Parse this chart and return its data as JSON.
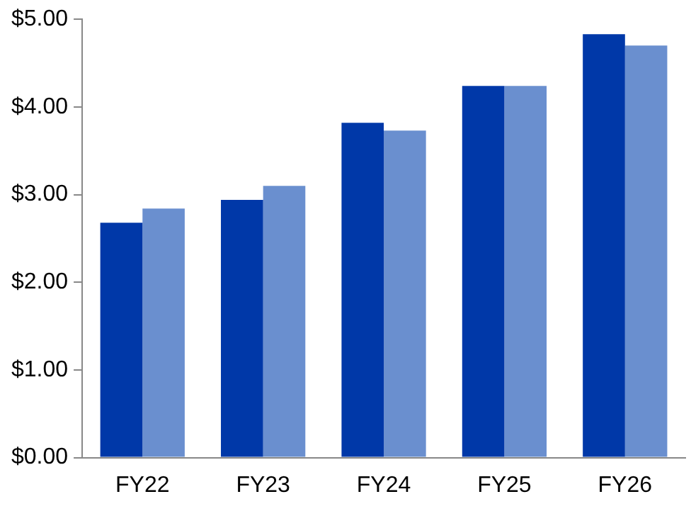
{
  "chart_data": {
    "type": "bar",
    "categories": [
      "FY22",
      "FY23",
      "FY24",
      "FY25",
      "FY26"
    ],
    "series": [
      {
        "color": "#0038a8",
        "values": [
          2.68,
          2.94,
          3.82,
          4.24,
          4.83
        ]
      },
      {
        "color": "#6a8fcf",
        "values": [
          2.84,
          3.1,
          3.73,
          4.24,
          4.7
        ]
      }
    ],
    "ylim": [
      0,
      5
    ],
    "yticks": [
      {
        "value": 0,
        "label": "$0.00"
      },
      {
        "value": 1,
        "label": "$1.00"
      },
      {
        "value": 2,
        "label": "$2.00"
      },
      {
        "value": 3,
        "label": "$3.00"
      },
      {
        "value": 4,
        "label": "$4.00"
      },
      {
        "value": 5,
        "label": "$5.00"
      }
    ],
    "grid": false,
    "legend": false
  }
}
